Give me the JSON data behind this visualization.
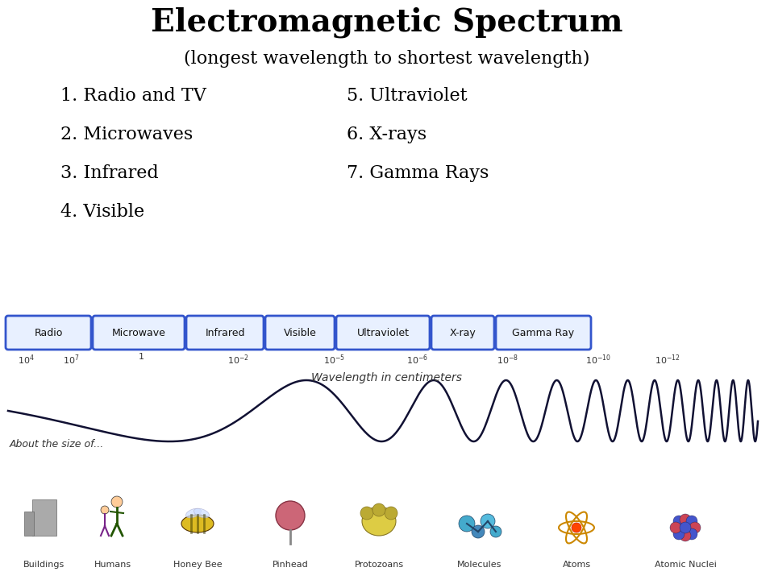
{
  "title": "Electromagnetic Spectrum",
  "subtitle": "(longest wavelength to shortest wavelength)",
  "bg_color": "#ffffff",
  "title_fontsize": 28,
  "subtitle_fontsize": 16,
  "list_col1": [
    "1. Radio and TV",
    "2. Microwaves",
    "3. Infrared",
    "4. Visible"
  ],
  "list_col2": [
    "5. Ultraviolet",
    "6. X-rays",
    "7. Gamma Rays"
  ],
  "list_fontsize": 16,
  "spectrum_labels": [
    "Radio",
    "Microwave",
    "Infrared",
    "Visible",
    "Ultraviolet",
    "X-ray",
    "Gamma Ray"
  ],
  "wavelength_label_raw": [
    "10^4",
    "10^7",
    "1",
    "10^-2",
    "10^-5",
    "10^-6",
    "10^-8",
    "10^-10",
    "10^-12"
  ],
  "wave_label": "Wavelength in centimeters",
  "size_label": "About the size of...",
  "size_items": [
    "Buildings",
    "Humans",
    "Honey Bee",
    "Pinhead",
    "Protozoans",
    "Molecules",
    "Atoms",
    "Atomic Nuclei"
  ],
  "box_face_color": "#e8f0ff",
  "box_edge_color": "#3355cc",
  "text_color": "#000000",
  "wave_color": "#111133"
}
